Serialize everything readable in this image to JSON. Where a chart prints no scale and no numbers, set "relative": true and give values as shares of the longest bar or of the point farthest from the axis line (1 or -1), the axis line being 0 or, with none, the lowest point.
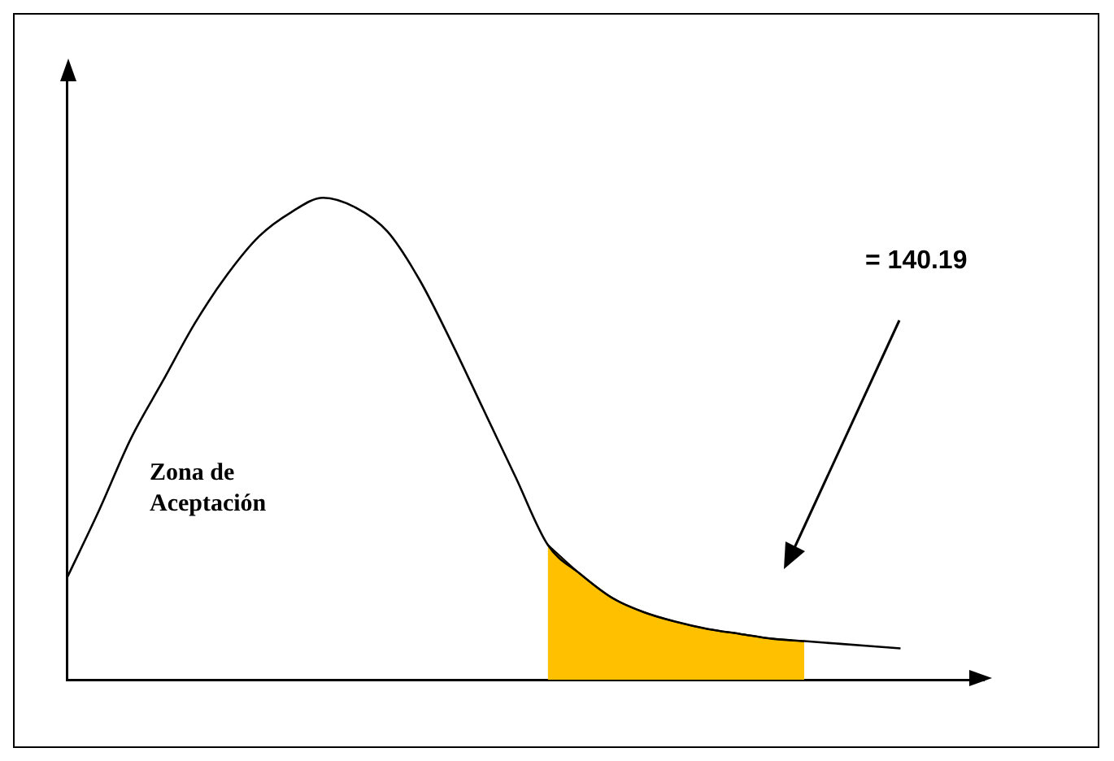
{
  "chart_data": {
    "type": "line",
    "relative": true,
    "categories": [
      null,
      null,
      null,
      null,
      null,
      null,
      null,
      null,
      null,
      null,
      null,
      null,
      null,
      null,
      null,
      null,
      null,
      null,
      null,
      null,
      null,
      null,
      null,
      null,
      null,
      null,
      null
    ],
    "series": [
      {
        "color": "#000000",
        "values": [
          0.21,
          0.35,
          0.5,
          0.62,
          0.74,
          0.84,
          0.92,
          0.97,
          1.0,
          0.98,
          0.93,
          0.83,
          0.7,
          0.56,
          0.42,
          0.28,
          0.22,
          0.17,
          0.14,
          0.12,
          0.105,
          0.095,
          0.085,
          0.08,
          0.075,
          0.07,
          0.065
        ]
      },
      {
        "type": "area",
        "color": "#ffc000",
        "values": [
          null,
          null,
          null,
          null,
          null,
          null,
          null,
          null,
          null,
          null,
          null,
          null,
          null,
          null,
          null,
          0.28,
          0.22,
          0.17,
          0.14,
          0.12,
          0.105,
          0.095,
          0.085,
          0.08,
          null,
          null,
          null
        ]
      }
    ],
    "annotations": [
      "Zona de Aceptación",
      "= 140.19"
    ],
    "grid": false,
    "legend": false,
    "marker": "none",
    "tick_labels": false
  }
}
